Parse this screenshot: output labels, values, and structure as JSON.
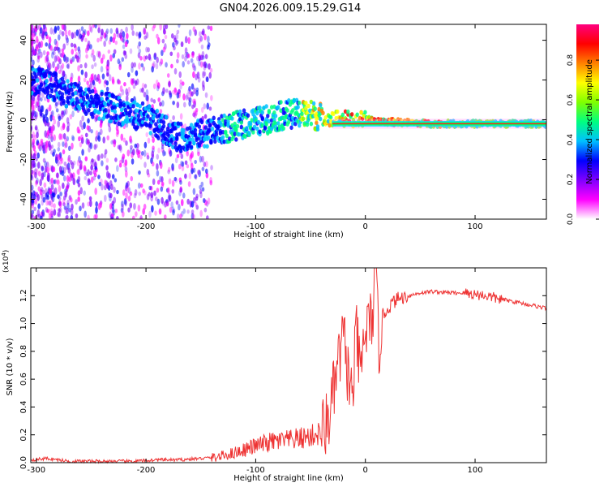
{
  "title": "GN04.2026.009.15.29.G14",
  "chart_data": [
    {
      "type": "heatmap",
      "title": "GN04.2026.009.15.29.G14",
      "xlabel": "Height of straight line (km)",
      "ylabel": "Frequency (Hz)",
      "xlim": [
        -305,
        165
      ],
      "ylim": [
        -50,
        48
      ],
      "xticks": [
        -300,
        -200,
        -100,
        0,
        100
      ],
      "yticks": [
        -40,
        -20,
        0,
        20,
        40
      ],
      "colorbar": {
        "label": "Normalized spectral amplitude",
        "range": [
          0,
          0.98
        ],
        "ticks": [
          "0.0",
          "0.2",
          "0.4",
          "0.6",
          "0.8"
        ],
        "colormap": [
          "#ffffff",
          "#ff00ff",
          "#8000ff",
          "#0000ff",
          "#00c0ff",
          "#00ff80",
          "#80ff00",
          "#ffff00",
          "#ff8000",
          "#ff0000",
          "#ff0080"
        ]
      },
      "ridge": {
        "x": [
          -305,
          -280,
          -260,
          -240,
          -220,
          -200,
          -180,
          -170,
          -150,
          -130,
          -110,
          -90,
          -70,
          -55,
          -45,
          -30,
          -10,
          0,
          20,
          60,
          100,
          165
        ],
        "y": [
          20,
          16,
          10,
          7,
          4,
          1,
          -6,
          -9,
          -7,
          -5,
          -2,
          0,
          3,
          3,
          2,
          1,
          0,
          0,
          -1,
          -2,
          -2,
          -2
        ]
      },
      "noise_region": {
        "x_from": -305,
        "x_to": -140,
        "y_from": -50,
        "y_to": 48
      },
      "grid": false
    },
    {
      "type": "line",
      "xlabel": "Height of straight line (km)",
      "ylabel": "SNR (10 * v/v)",
      "y_multiplier": "(x10",
      "y_multiplier_exp": "4",
      "y_multiplier_close": ")",
      "xlim": [
        -305,
        165
      ],
      "ylim": [
        0,
        1.4
      ],
      "xticks": [
        -300,
        -200,
        -100,
        0,
        100
      ],
      "yticks": [
        "0.0",
        "0.2",
        "0.4",
        "0.6",
        "0.8",
        "1.0",
        "1.2"
      ],
      "color": "#ee3333",
      "series": [
        {
          "x": [
            -305,
            -290,
            -270,
            -250,
            -230,
            -210,
            -190,
            -170,
            -150,
            -135,
            -120,
            -100,
            -85,
            -70,
            -55,
            -45,
            -40,
            -35,
            -30,
            -25,
            -20,
            -15,
            -12,
            -8,
            -5,
            0,
            5,
            8,
            10,
            12,
            15,
            20,
            25,
            30,
            40,
            50,
            60,
            80,
            90,
            100,
            110,
            120,
            140,
            165
          ],
          "y": [
            0.02,
            0.03,
            0.01,
            0.01,
            0.01,
            0.01,
            0.02,
            0.02,
            0.03,
            0.04,
            0.07,
            0.12,
            0.15,
            0.16,
            0.18,
            0.2,
            0.22,
            0.28,
            0.45,
            0.7,
            0.9,
            0.6,
            0.45,
            0.95,
            0.6,
            0.95,
            1.0,
            1.2,
            1.35,
            0.8,
            1.05,
            1.1,
            1.15,
            1.18,
            1.2,
            1.22,
            1.23,
            1.22,
            1.22,
            1.21,
            1.2,
            1.18,
            1.15,
            1.11
          ]
        }
      ],
      "grid": false
    }
  ]
}
